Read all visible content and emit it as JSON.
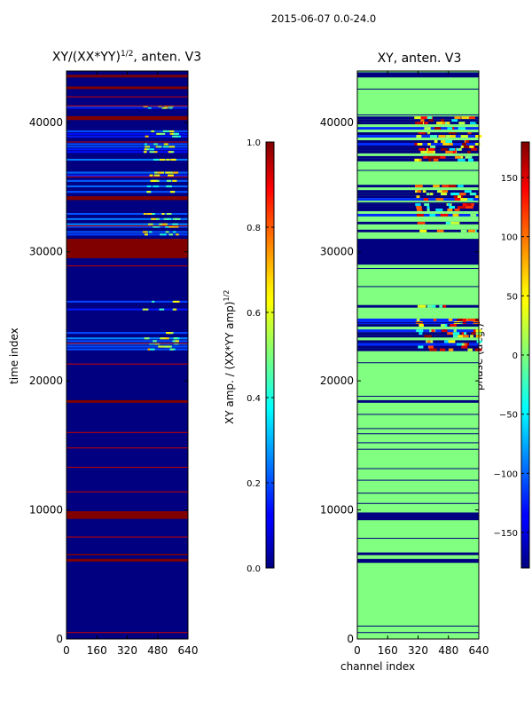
{
  "suptitle": "2015-06-07 0.0-24.0",
  "chart_data": [
    {
      "type": "heatmap",
      "title": "XY/(XX*YY)",
      "title_exponent": "1/2",
      "title_suffix": ", anten. V3",
      "xlabel": "",
      "ylabel": "time index",
      "xlim": [
        0,
        640
      ],
      "ylim": [
        0,
        44000
      ],
      "xticks": [
        0,
        160,
        320,
        480,
        640
      ],
      "yticks": [
        0,
        10000,
        20000,
        30000,
        40000
      ],
      "colorbar": {
        "label": "XY amp. / (XX*YY amp)",
        "label_exponent": "1/2",
        "range": [
          0.0,
          1.0
        ],
        "ticks": [
          "0.0",
          "0.2",
          "0.4",
          "0.6",
          "0.8",
          "1.0"
        ],
        "tick_values": [
          0.0,
          0.2,
          0.4,
          0.6,
          0.8,
          1.0
        ]
      },
      "background_value": 0.0,
      "bands": [
        {
          "y0": 29500,
          "y1": 31000,
          "value": 1.0
        },
        {
          "y0": 9300,
          "y1": 9900,
          "value": 1.0
        },
        {
          "y0": 18300,
          "y1": 18500,
          "value": 1.0
        },
        {
          "y0": 6000,
          "y1": 6200,
          "value": 1.0
        },
        {
          "y0": 6500,
          "y1": 6600,
          "value": 1.0
        },
        {
          "y0": 34000,
          "y1": 34300,
          "value": 1.0
        },
        {
          "y0": 40200,
          "y1": 40500,
          "value": 1.0
        },
        {
          "y0": 42600,
          "y1": 42800,
          "value": 1.0
        },
        {
          "y0": 43500,
          "y1": 43700,
          "value": 1.0
        }
      ],
      "thin_lines": [
        500,
        7900,
        11400,
        13300,
        14800,
        16000,
        21300,
        22900,
        28900,
        32000,
        35800,
        38500,
        41300,
        42000
      ],
      "active_blocks": [
        {
          "y0": 22300,
          "y1": 24000,
          "value": 0.25
        },
        {
          "y0": 25400,
          "y1": 26200,
          "value": 0.2
        },
        {
          "y0": 30800,
          "y1": 33200,
          "value": 0.22
        },
        {
          "y0": 34500,
          "y1": 36200,
          "value": 0.2
        },
        {
          "y0": 37000,
          "y1": 39400,
          "value": 0.22
        },
        {
          "y0": 40900,
          "y1": 41300,
          "value": 0.2
        }
      ]
    },
    {
      "type": "heatmap",
      "title": "XY, anten. V3",
      "xlabel": "channel index",
      "ylabel": "",
      "xlim": [
        0,
        640
      ],
      "ylim": [
        0,
        44000
      ],
      "xticks": [
        0,
        160,
        320,
        480,
        640
      ],
      "yticks": [
        0,
        10000,
        20000,
        30000,
        40000
      ],
      "colorbar": {
        "label": "phase (deg.)",
        "range": [
          -180,
          180
        ],
        "ticks": [
          "−150",
          "−100",
          "−50",
          "0",
          "50",
          "100",
          "150"
        ],
        "tick_values": [
          -150,
          -100,
          -50,
          0,
          50,
          100,
          150
        ]
      },
      "background_value": 0,
      "bands": [
        {
          "y0": 29000,
          "y1": 31000,
          "value": -180
        },
        {
          "y0": 9200,
          "y1": 9800,
          "value": -180
        },
        {
          "y0": 18300,
          "y1": 18500,
          "value": -180
        },
        {
          "y0": 5900,
          "y1": 6200,
          "value": -180
        },
        {
          "y0": 6500,
          "y1": 6700,
          "value": -180
        },
        {
          "y0": 43500,
          "y1": 43900,
          "value": -180
        }
      ],
      "thin_lines": [
        500,
        1000,
        7800,
        10500,
        11300,
        12300,
        13200,
        14700,
        15200,
        15900,
        16300,
        17400,
        18800,
        21400,
        24500,
        27300,
        28700,
        33800,
        36300,
        39100,
        40600,
        42600
      ],
      "active_blocks": [
        {
          "y0": 22300,
          "y1": 26500,
          "value": 0
        },
        {
          "y0": 31300,
          "y1": 36000,
          "value": 0
        },
        {
          "y0": 37000,
          "y1": 41500,
          "value": 0
        }
      ]
    }
  ]
}
